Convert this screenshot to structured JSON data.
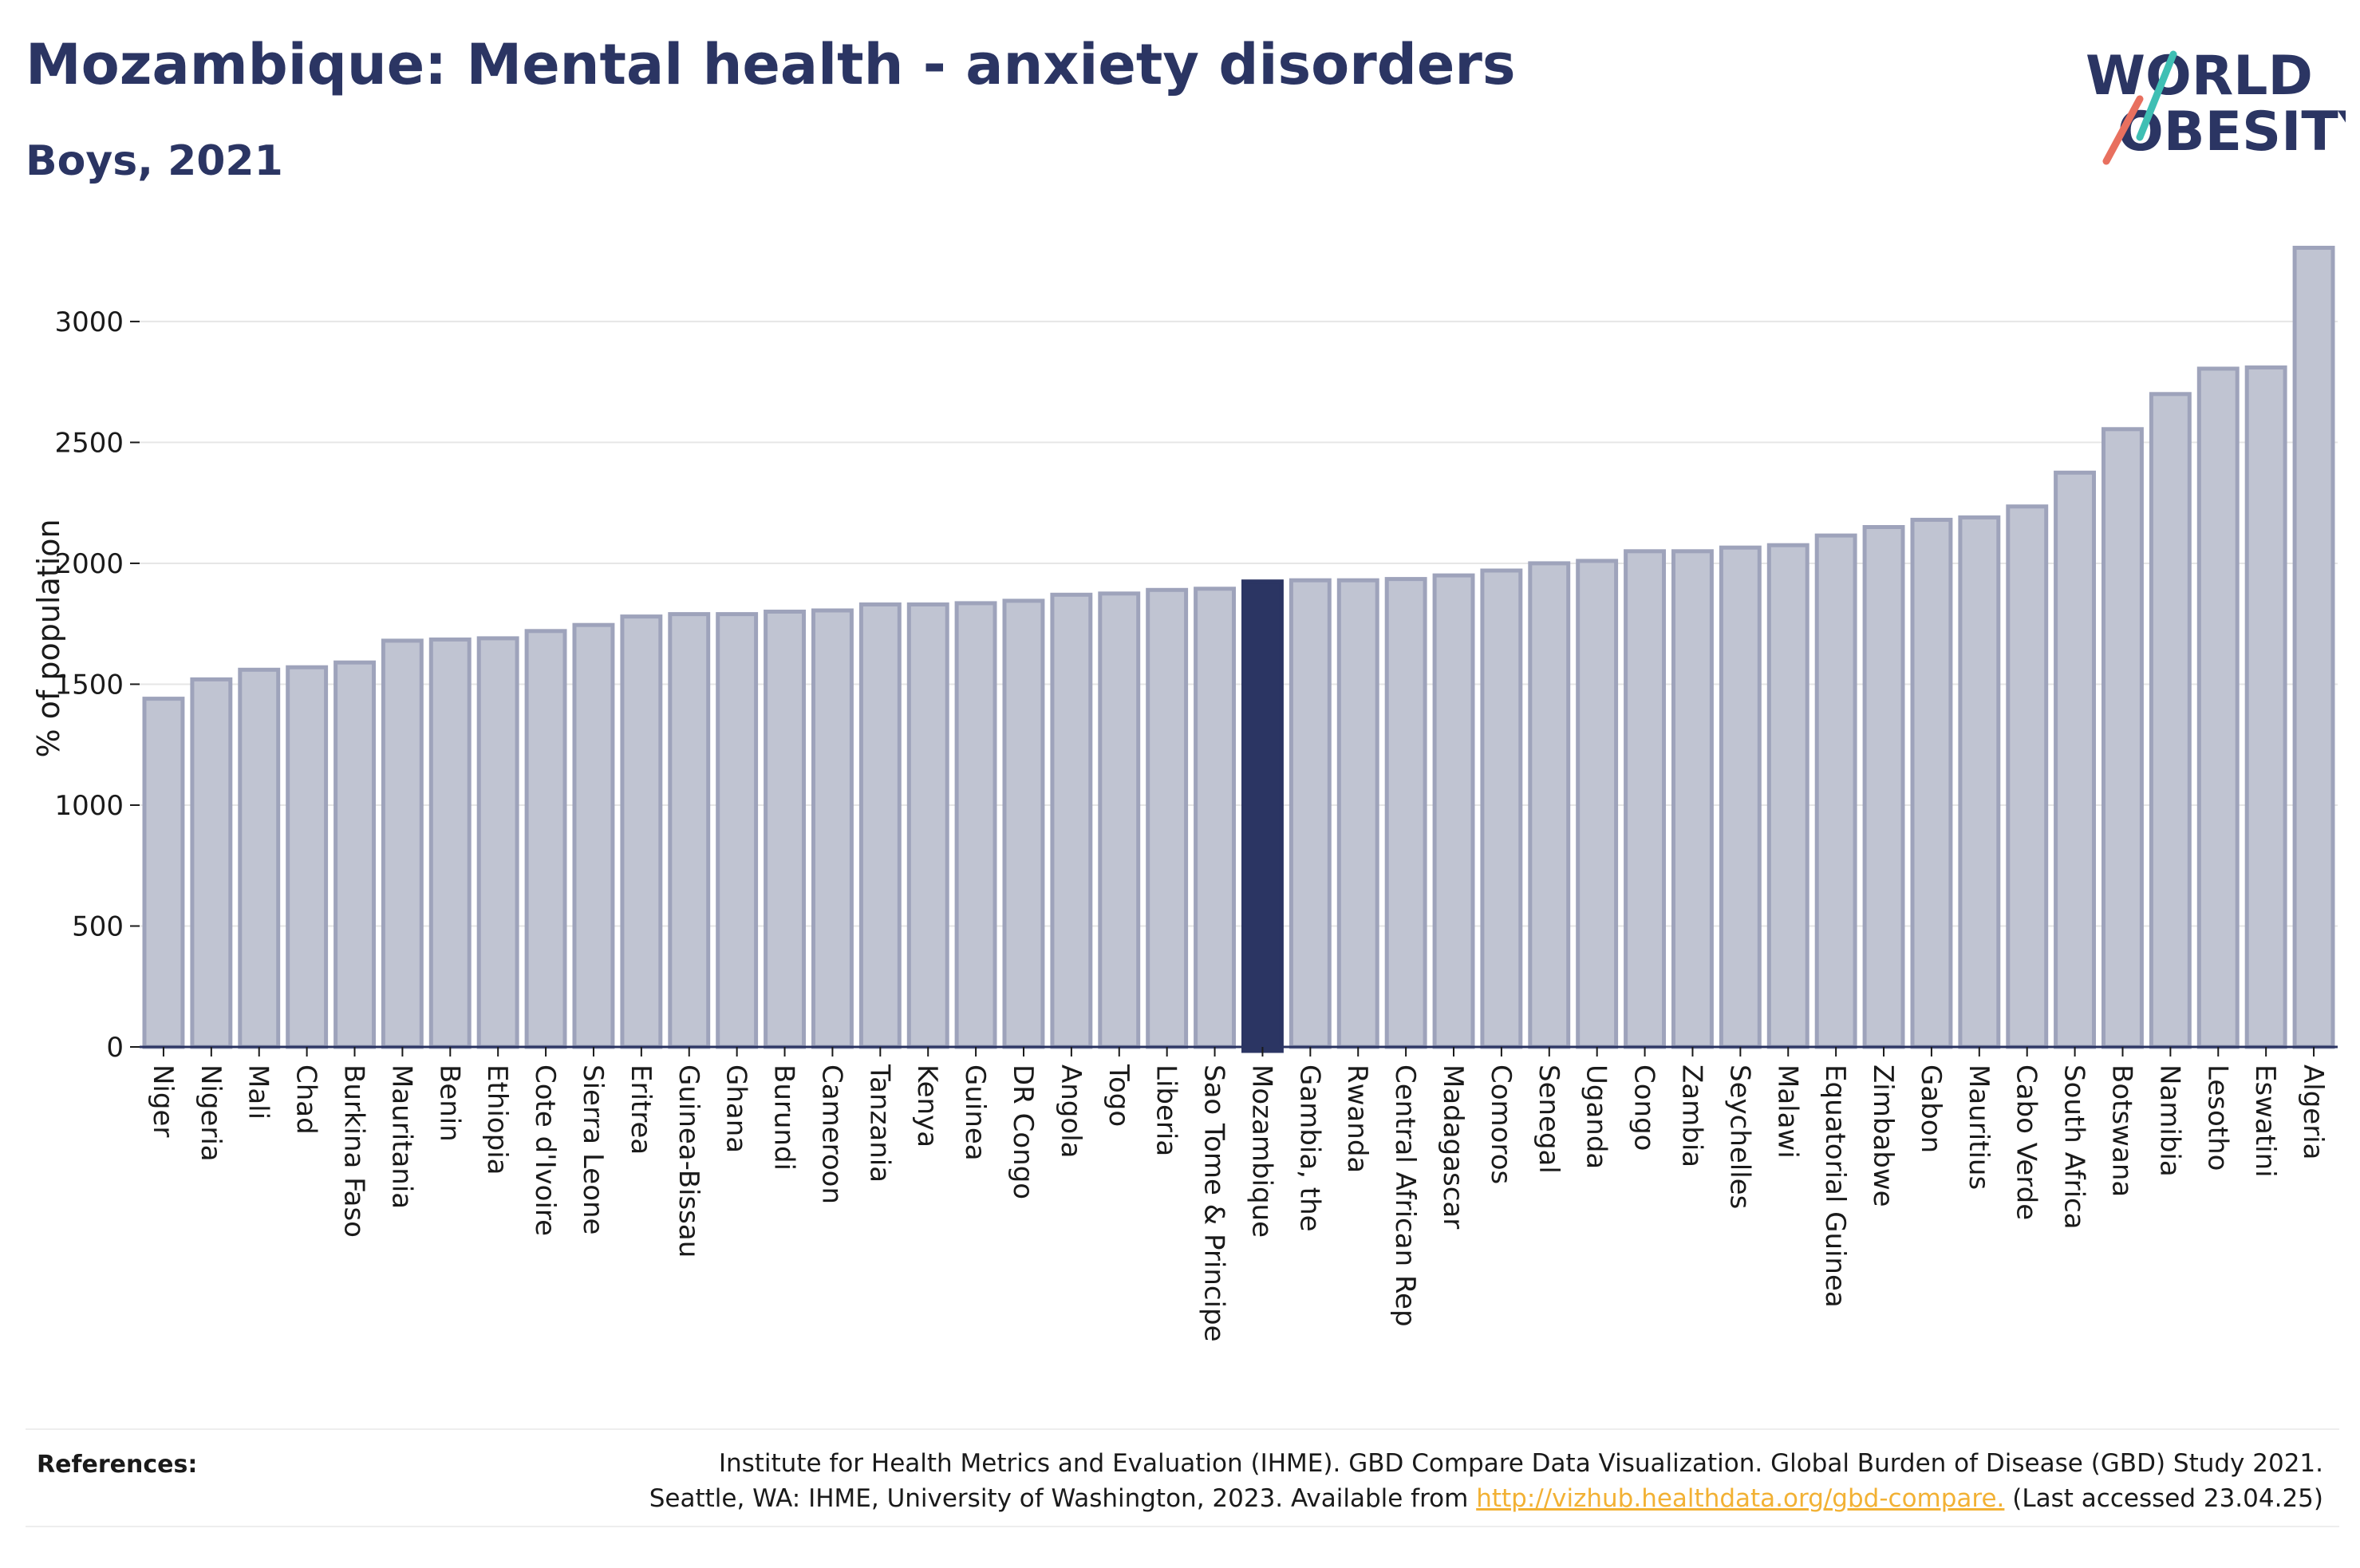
{
  "header": {
    "title": "Mozambique: Mental health - anxiety disorders",
    "subtitle": "Boys, 2021"
  },
  "logo": {
    "line1": "WORLD",
    "line2": "OBESITY",
    "colors": {
      "text": "#2b3563",
      "slash_teal": "#3fbfb4",
      "slash_coral": "#e8705f"
    }
  },
  "colors": {
    "bar_fill": "#c0c4d2",
    "bar_stroke": "#9ea3bb",
    "highlight_fill": "#2b3563",
    "axis": "#2b3563",
    "grid": "#e6e6e6"
  },
  "chart_data": {
    "type": "bar",
    "ylabel": "% of population",
    "ylim": [
      0,
      3300
    ],
    "yticks": [
      0,
      500,
      1000,
      1500,
      2000,
      2500,
      3000
    ],
    "grid": true,
    "highlight": "Mozambique",
    "categories": [
      "Niger",
      "Nigeria",
      "Mali",
      "Chad",
      "Burkina Faso",
      "Mauritania",
      "Benin",
      "Ethiopia",
      "Cote d'Ivoire",
      "Sierra Leone",
      "Eritrea",
      "Guinea-Bissau",
      "Ghana",
      "Burundi",
      "Cameroon",
      "Tanzania",
      "Kenya",
      "Guinea",
      "DR Congo",
      "Angola",
      "Togo",
      "Liberia",
      "Sao Tome & Principe",
      "Mozambique",
      "Gambia, the",
      "Rwanda",
      "Central African Rep",
      "Madagascar",
      "Comoros",
      "Senegal",
      "Uganda",
      "Congo",
      "Zambia",
      "Seychelles",
      "Malawi",
      "Equatorial Guinea",
      "Zimbabwe",
      "Gabon",
      "Mauritius",
      "Cabo Verde",
      "South Africa",
      "Botswana",
      "Namibia",
      "Lesotho",
      "Eswatini",
      "Algeria"
    ],
    "values": [
      1440,
      1520,
      1560,
      1570,
      1590,
      1680,
      1685,
      1690,
      1720,
      1745,
      1780,
      1790,
      1790,
      1800,
      1805,
      1830,
      1830,
      1835,
      1845,
      1870,
      1875,
      1890,
      1895,
      1925,
      1930,
      1930,
      1935,
      1950,
      1970,
      2000,
      2010,
      2050,
      2050,
      2065,
      2075,
      2115,
      2150,
      2180,
      2190,
      2235,
      2375,
      2555,
      2700,
      2805,
      2810,
      3305
    ]
  },
  "references": {
    "label": "References:",
    "line1": "Institute for Health Metrics and Evaluation (IHME). GBD Compare Data Visualization. Global Burden of Disease (GBD) Study 2021.",
    "line2_prefix": "Seattle, WA: IHME, University of Washington, 2023. Available from ",
    "link": "http://vizhub.healthdata.org/gbd-compare.",
    "line2_suffix": " (Last accessed 23.04.25)"
  }
}
